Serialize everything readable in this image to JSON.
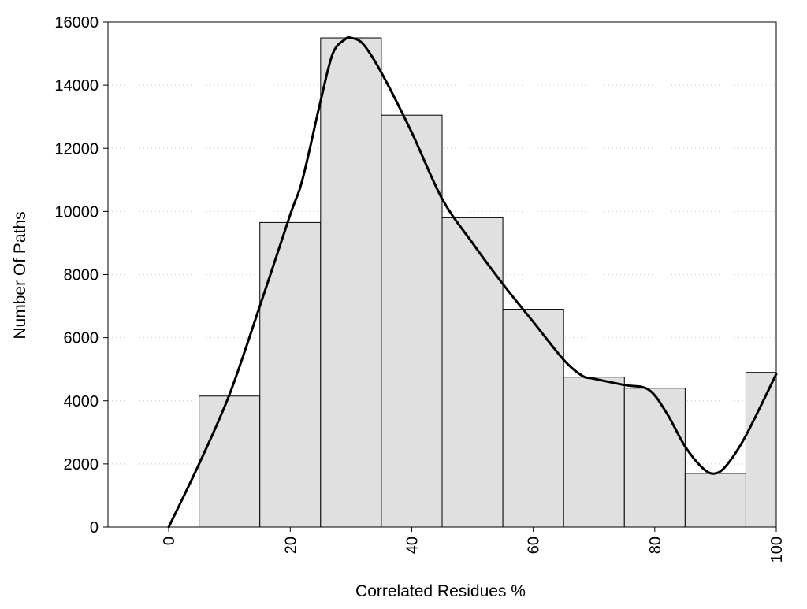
{
  "chart_data": {
    "type": "bar",
    "xlabel": "Correlated Residues %",
    "ylabel": "Number Of Paths",
    "xlim": [
      -10,
      100
    ],
    "ylim": [
      0,
      16000
    ],
    "x_ticks": [
      0,
      20,
      40,
      60,
      80,
      100
    ],
    "y_ticks": [
      0,
      2000,
      4000,
      6000,
      8000,
      10000,
      12000,
      14000,
      16000
    ],
    "grid": "horizontal dotted",
    "bin_width": 10,
    "bins": [
      {
        "x": 10,
        "value": 4150
      },
      {
        "x": 20,
        "value": 9650
      },
      {
        "x": 30,
        "value": 15500
      },
      {
        "x": 40,
        "value": 13050
      },
      {
        "x": 50,
        "value": 9800
      },
      {
        "x": 60,
        "value": 6900
      },
      {
        "x": 70,
        "value": 4750
      },
      {
        "x": 80,
        "value": 4400
      },
      {
        "x": 90,
        "value": 1700
      },
      {
        "x": 100,
        "value": 4900
      }
    ],
    "curve": {
      "x": [
        0,
        5,
        10,
        15,
        20,
        22,
        25,
        27,
        29,
        30,
        32,
        35,
        40,
        45,
        50,
        55,
        60,
        65,
        68,
        70,
        75,
        79,
        82,
        85,
        88,
        90,
        92,
        95,
        100
      ],
      "y": [
        0,
        2000,
        4200,
        7000,
        9900,
        11000,
        13500,
        15000,
        15450,
        15500,
        15300,
        14400,
        12500,
        10400,
        9000,
        7700,
        6500,
        5300,
        4800,
        4700,
        4500,
        4350,
        3600,
        2550,
        1850,
        1700,
        2000,
        2900,
        4850
      ]
    }
  }
}
